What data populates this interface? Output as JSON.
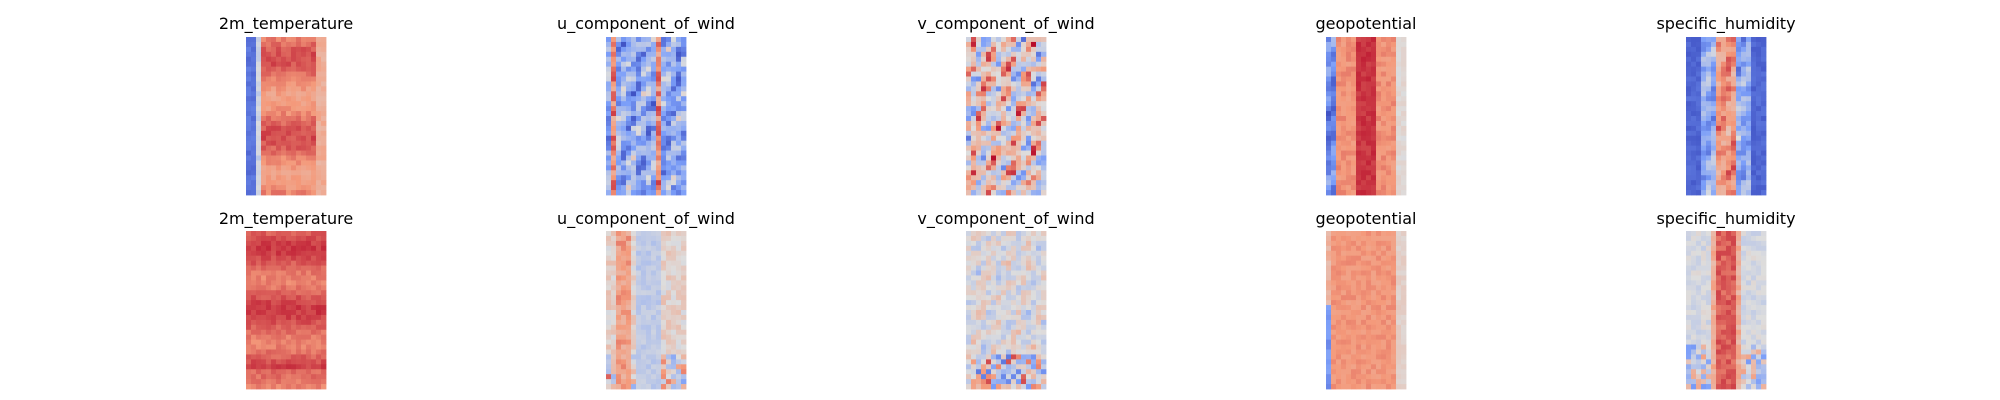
{
  "chart_data": {
    "type": "heatmap",
    "colormap": "coolwarm",
    "axes": "off",
    "grid": false,
    "legend": "none",
    "layout": {
      "rows": 2,
      "cols": 5
    },
    "panels": [
      {
        "row": 0,
        "col": 0,
        "title": "2m_temperature",
        "pattern": "temp_top",
        "seed": 11
      },
      {
        "row": 0,
        "col": 1,
        "title": "u_component_of_wind",
        "pattern": "u_top",
        "seed": 23
      },
      {
        "row": 0,
        "col": 2,
        "title": "v_component_of_wind",
        "pattern": "v_top",
        "seed": 37
      },
      {
        "row": 0,
        "col": 3,
        "title": "geopotential",
        "pattern": "geo_top",
        "seed": 41
      },
      {
        "row": 0,
        "col": 4,
        "title": "specific_humidity",
        "pattern": "hum_top",
        "seed": 53
      },
      {
        "row": 1,
        "col": 0,
        "title": "2m_temperature",
        "pattern": "temp_bottom",
        "seed": 61
      },
      {
        "row": 1,
        "col": 1,
        "title": "u_component_of_wind",
        "pattern": "u_bottom",
        "seed": 73
      },
      {
        "row": 1,
        "col": 2,
        "title": "v_component_of_wind",
        "pattern": "v_bottom",
        "seed": 89
      },
      {
        "row": 1,
        "col": 3,
        "title": "geopotential",
        "pattern": "geo_bottom",
        "seed": 97
      },
      {
        "row": 1,
        "col": 4,
        "title": "specific_humidity",
        "pattern": "hum_bottom",
        "seed": 101
      }
    ]
  }
}
